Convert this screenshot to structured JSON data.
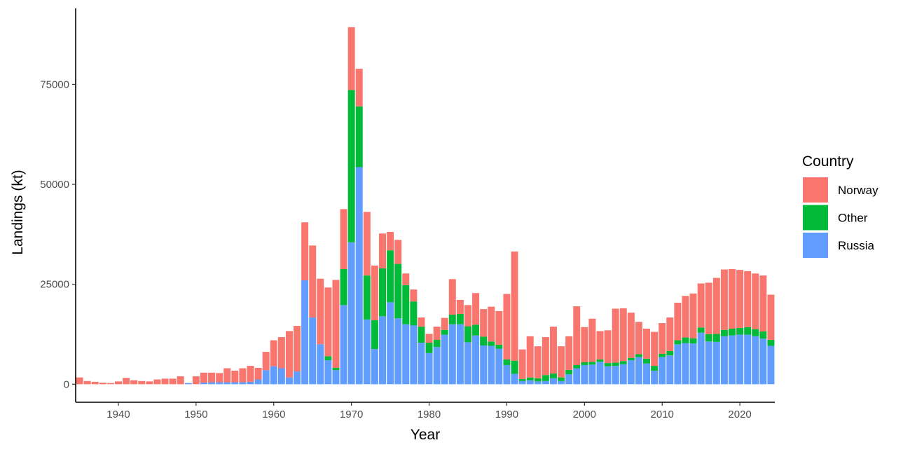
{
  "chart_data": {
    "type": "bar",
    "stacked": true,
    "xlabel": "Year",
    "ylabel": "Landings (kt)",
    "xlim": [
      1934.5,
      2024.5
    ],
    "ylim": [
      -4500,
      94000
    ],
    "x_ticks": [
      1940,
      1950,
      1960,
      1970,
      1980,
      1990,
      2000,
      2010,
      2020
    ],
    "x_tick_labels": [
      "1940",
      "1950",
      "1960",
      "1970",
      "1980",
      "1990",
      "2000",
      "2010",
      "2020"
    ],
    "y_ticks": [
      0,
      25000,
      50000,
      75000
    ],
    "y_tick_labels": [
      "0",
      "25000",
      "50000",
      "75000"
    ],
    "grid": false,
    "legend": {
      "title": "Country",
      "position": "right"
    },
    "x": [
      1935,
      1936,
      1937,
      1938,
      1939,
      1940,
      1941,
      1942,
      1943,
      1944,
      1945,
      1946,
      1947,
      1948,
      1949,
      1950,
      1951,
      1952,
      1953,
      1954,
      1955,
      1956,
      1957,
      1958,
      1959,
      1960,
      1961,
      1962,
      1963,
      1964,
      1965,
      1966,
      1967,
      1968,
      1969,
      1970,
      1971,
      1972,
      1973,
      1974,
      1975,
      1976,
      1977,
      1978,
      1979,
      1980,
      1981,
      1982,
      1983,
      1984,
      1985,
      1986,
      1987,
      1988,
      1989,
      1990,
      1991,
      1992,
      1993,
      1994,
      1995,
      1996,
      1997,
      1998,
      1999,
      2000,
      2001,
      2002,
      2003,
      2004,
      2005,
      2006,
      2007,
      2008,
      2009,
      2010,
      2011,
      2012,
      2013,
      2014,
      2015,
      2016,
      2017,
      2018,
      2019,
      2020,
      2021,
      2022,
      2023,
      2024
    ],
    "series": [
      {
        "name": "Russia",
        "color": "#619CFF",
        "values": [
          0,
          0,
          0,
          0,
          0,
          0,
          0,
          0,
          0,
          0,
          0,
          0,
          0,
          0,
          300,
          0,
          400,
          500,
          500,
          500,
          500,
          500,
          600,
          1200,
          3500,
          4500,
          4000,
          1700,
          3200,
          26000,
          16700,
          10000,
          6000,
          3500,
          19800,
          35500,
          54300,
          16200,
          8800,
          17000,
          20500,
          16500,
          15000,
          14700,
          10400,
          7800,
          9300,
          12400,
          15000,
          15000,
          10500,
          12200,
          9700,
          9600,
          8900,
          4800,
          2600,
          800,
          1000,
          700,
          800,
          1500,
          800,
          2500,
          4000,
          4800,
          4900,
          5600,
          4500,
          4600,
          5000,
          6000,
          6800,
          5200,
          3400,
          6800,
          7200,
          10000,
          10300,
          10200,
          12900,
          10700,
          10600,
          12000,
          12200,
          12400,
          12400,
          12000,
          11400,
          9600
        ]
      },
      {
        "name": "Other",
        "color": "#00BA38",
        "values": [
          0,
          0,
          0,
          0,
          0,
          0,
          0,
          0,
          0,
          0,
          0,
          0,
          0,
          0,
          0,
          0,
          0,
          0,
          0,
          0,
          0,
          0,
          0,
          0,
          0,
          0,
          0,
          0,
          0,
          0,
          0,
          0,
          1000,
          600,
          9000,
          38100,
          15200,
          11000,
          7200,
          12000,
          13000,
          13600,
          9800,
          6000,
          4000,
          2600,
          1800,
          1200,
          2400,
          2600,
          4000,
          2700,
          2200,
          1100,
          1000,
          1400,
          3300,
          500,
          700,
          800,
          1500,
          1200,
          900,
          1100,
          800,
          700,
          700,
          600,
          800,
          800,
          800,
          600,
          700,
          1200,
          1200,
          800,
          1100,
          1000,
          1400,
          1300,
          1300,
          1800,
          2000,
          1600,
          1700,
          1700,
          1900,
          1800,
          1800,
          1500
        ]
      },
      {
        "name": "Norway",
        "color": "#F8766D",
        "values": [
          1700,
          800,
          600,
          400,
          300,
          700,
          1600,
          1000,
          800,
          700,
          1200,
          1400,
          1400,
          2000,
          0,
          2000,
          2500,
          2400,
          2300,
          3500,
          2900,
          3500,
          4000,
          2900,
          4600,
          6500,
          7800,
          11600,
          11400,
          14500,
          18000,
          16400,
          17200,
          22000,
          15000,
          15700,
          9400,
          15900,
          13700,
          8700,
          4600,
          6000,
          2900,
          3000,
          2300,
          2200,
          3300,
          3000,
          8900,
          3500,
          5300,
          7900,
          6900,
          8700,
          8400,
          16400,
          27300,
          7400,
          10300,
          8000,
          9500,
          11700,
          7800,
          8400,
          14700,
          8800,
          10800,
          7100,
          8200,
          13500,
          13200,
          11300,
          8100,
          7500,
          8500,
          7700,
          8400,
          9400,
          10400,
          11200,
          11000,
          12900,
          14000,
          15100,
          14900,
          14500,
          14000,
          13900,
          14000,
          11300
        ]
      }
    ]
  }
}
